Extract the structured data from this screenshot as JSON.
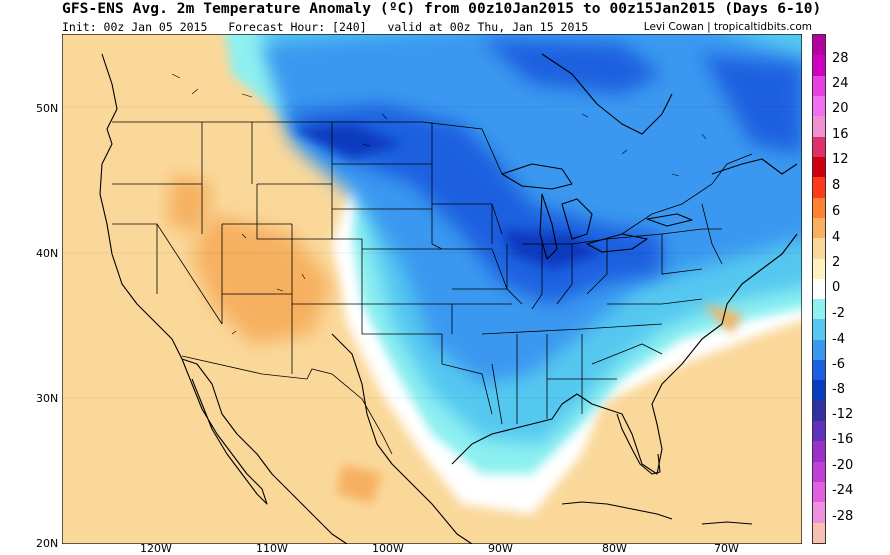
{
  "header": {
    "title": "GFS-ENS Avg. 2m Temperature Anomaly (ºC) from 00z10Jan2015 to 00z15Jan2015 (Days 6-10)",
    "init": "Init: 00z Jan 05 2015",
    "forecast_hour": "Forecast Hour: [240]",
    "valid": "valid at 00z Thu, Jan 15 2015",
    "credit": "Levi Cowan | tropicaltidbits.com"
  },
  "lat_labels": [
    "50N",
    "40N",
    "30N",
    "20N"
  ],
  "lon_labels": [
    "120W",
    "110W",
    "100W",
    "90W",
    "80W",
    "70W"
  ],
  "colorbar": {
    "labels": [
      "28",
      "24",
      "20",
      "16",
      "12",
      "8",
      "6",
      "4",
      "2",
      "0",
      "-2",
      "-4",
      "-6",
      "-8",
      "-12",
      "-16",
      "-20",
      "-24",
      "-28"
    ],
    "colors": [
      "#b300a0",
      "#d000c0",
      "#e840e0",
      "#f070f0",
      "#f090d0",
      "#e0306c",
      "#d00010",
      "#ff3a1a",
      "#ff8030",
      "#f6b060",
      "#fad89a",
      "#fff2c0",
      "#ffffff",
      "#8ef0f0",
      "#55c8f0",
      "#3a98f0",
      "#1a60e0",
      "#0a3ac0",
      "#3030a0",
      "#6030c0",
      "#9a30c8",
      "#c040d8",
      "#e060e0",
      "#f090e0",
      "#f8c0b0"
    ]
  },
  "legend_semantic": {
    "warm_colors": [
      "#fad89a",
      "#f6b060"
    ],
    "cold_colors": [
      "#55c8f0",
      "#3a98f0",
      "#1a60e0",
      "#0a3ac0"
    ]
  }
}
